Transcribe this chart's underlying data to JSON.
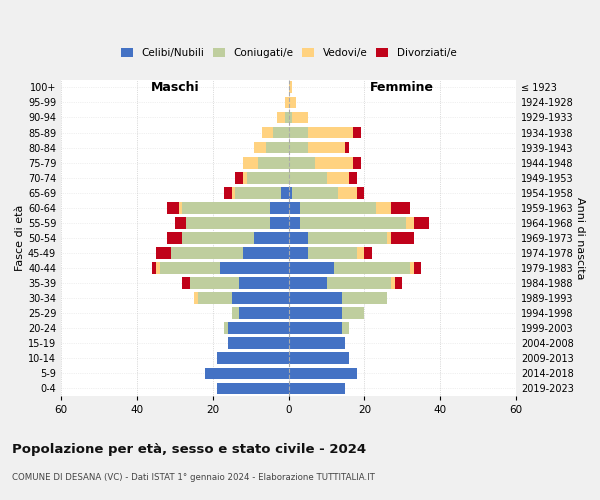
{
  "age_groups": [
    "0-4",
    "5-9",
    "10-14",
    "15-19",
    "20-24",
    "25-29",
    "30-34",
    "35-39",
    "40-44",
    "45-49",
    "50-54",
    "55-59",
    "60-64",
    "65-69",
    "70-74",
    "75-79",
    "80-84",
    "85-89",
    "90-94",
    "95-99",
    "100+"
  ],
  "birth_years": [
    "2019-2023",
    "2014-2018",
    "2009-2013",
    "2004-2008",
    "1999-2003",
    "1994-1998",
    "1989-1993",
    "1984-1988",
    "1979-1983",
    "1974-1978",
    "1969-1973",
    "1964-1968",
    "1959-1963",
    "1954-1958",
    "1949-1953",
    "1944-1948",
    "1939-1943",
    "1934-1938",
    "1929-1933",
    "1924-1928",
    "≤ 1923"
  ],
  "male": {
    "celibi": [
      19,
      22,
      19,
      16,
      16,
      13,
      15,
      13,
      18,
      12,
      9,
      5,
      5,
      2,
      0,
      0,
      0,
      0,
      0,
      0,
      0
    ],
    "coniugati": [
      0,
      0,
      0,
      0,
      1,
      2,
      9,
      13,
      16,
      19,
      19,
      22,
      23,
      12,
      11,
      8,
      6,
      4,
      1,
      0,
      0
    ],
    "vedovi": [
      0,
      0,
      0,
      0,
      0,
      0,
      1,
      0,
      1,
      0,
      0,
      0,
      1,
      1,
      1,
      4,
      3,
      3,
      2,
      1,
      0
    ],
    "divorziati": [
      0,
      0,
      0,
      0,
      0,
      0,
      0,
      2,
      1,
      4,
      4,
      3,
      3,
      2,
      2,
      0,
      0,
      0,
      0,
      0,
      0
    ]
  },
  "female": {
    "nubili": [
      15,
      18,
      16,
      15,
      14,
      14,
      14,
      10,
      12,
      5,
      5,
      3,
      3,
      1,
      0,
      0,
      0,
      0,
      0,
      0,
      0
    ],
    "coniugate": [
      0,
      0,
      0,
      0,
      2,
      6,
      12,
      17,
      20,
      13,
      21,
      28,
      20,
      12,
      10,
      7,
      5,
      5,
      1,
      0,
      0
    ],
    "vedove": [
      0,
      0,
      0,
      0,
      0,
      0,
      0,
      1,
      1,
      2,
      1,
      2,
      4,
      5,
      6,
      10,
      10,
      12,
      4,
      2,
      1
    ],
    "divorziate": [
      0,
      0,
      0,
      0,
      0,
      0,
      0,
      2,
      2,
      2,
      6,
      4,
      5,
      2,
      2,
      2,
      1,
      2,
      0,
      0,
      0
    ]
  },
  "colors": {
    "celibi_nubili": "#4472C4",
    "coniugati": "#BFCE9E",
    "vedovi": "#FFD280",
    "divorziati": "#C0021A"
  },
  "xlim": 60,
  "title": "Popolazione per età, sesso e stato civile - 2024",
  "subtitle": "COMUNE DI DESANA (VC) - Dati ISTAT 1° gennaio 2024 - Elaborazione TUTTITALIA.IT",
  "ylabel_left": "Fasce di età",
  "ylabel_right": "Anni di nascita",
  "xlabel_male": "Maschi",
  "xlabel_female": "Femmine",
  "background_color": "#f0f0f0",
  "plot_background": "#ffffff"
}
